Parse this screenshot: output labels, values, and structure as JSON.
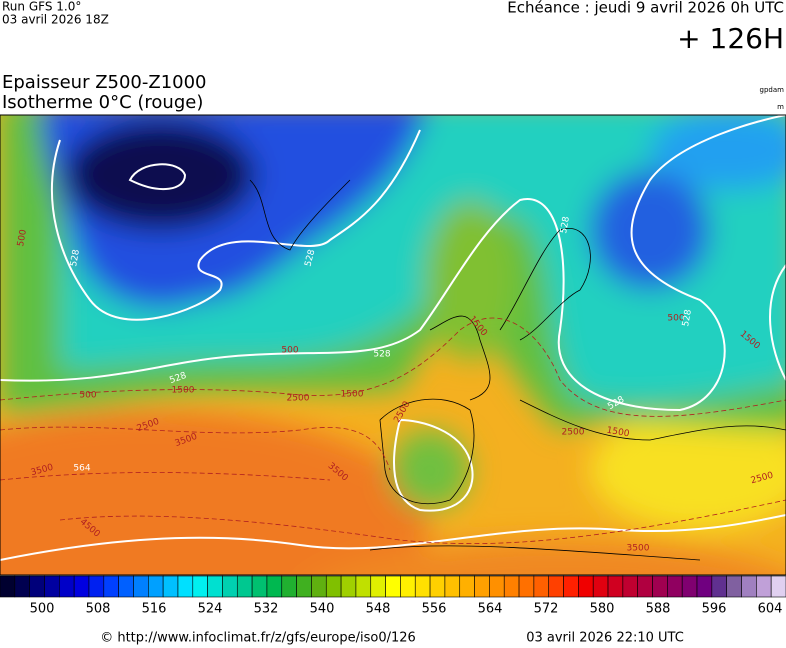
{
  "header": {
    "run": "Run GFS 1.0°",
    "run_date": "03 avril 2026 18Z",
    "forecast": "Echéance : jeudi 9 avril 2026 0h UTC",
    "lead": "+ 126H",
    "title": "Epaisseur Z500-Z1000",
    "subtitle": "Isotherme 0°C (rouge)",
    "unit_top": "gpdam",
    "unit_bottom": "m"
  },
  "map": {
    "contour_labels": [
      500,
      528,
      528,
      500,
      528,
      528,
      500,
      2500,
      1500,
      1500,
      2500,
      3500,
      2500,
      3500,
      3500,
      564,
      4500,
      528,
      1500,
      500,
      528,
      1500,
      528,
      1500,
      2500,
      2500,
      3500
    ]
  },
  "colorbar": {
    "ticks": [
      500,
      508,
      516,
      524,
      532,
      540,
      548,
      556,
      564,
      572,
      580,
      588,
      596,
      604
    ],
    "colors": [
      "#000030",
      "#000050",
      "#00007a",
      "#0000a0",
      "#0000c8",
      "#0000e0",
      "#0020f0",
      "#0040ff",
      "#0060ff",
      "#0080ff",
      "#00a0ff",
      "#00c0ff",
      "#00e0ff",
      "#00f0f0",
      "#00e0d0",
      "#00d0b0",
      "#00c890",
      "#00c070",
      "#00b850",
      "#20b030",
      "#40b020",
      "#60b010",
      "#80c000",
      "#a0d000",
      "#c0e000",
      "#e0f000",
      "#ffff00",
      "#fff000",
      "#ffe000",
      "#ffd000",
      "#ffc000",
      "#ffb000",
      "#ffa000",
      "#ff9000",
      "#ff8000",
      "#ff7000",
      "#ff6000",
      "#ff4000",
      "#ff2000",
      "#f00000",
      "#e00010",
      "#d00020",
      "#c00030",
      "#b00040",
      "#a00050",
      "#900060",
      "#800070",
      "#700080",
      "#603090",
      "#8060a0",
      "#a080c0",
      "#c0a0d8",
      "#e0d0f0"
    ]
  },
  "footer": {
    "source": "© http://www.infoclimat.fr/z/gfs/europe/iso0/126",
    "generated": "03 avril 2026 22:10 UTC"
  }
}
